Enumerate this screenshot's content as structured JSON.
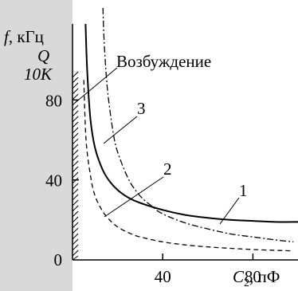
{
  "chart_data": {
    "type": "line",
    "title": "",
    "xlabel": "C",
    "xlabel_sub": "2",
    "xlabel_unit": ", пФ",
    "ylabel_f_sym": "f",
    "ylabel_f_unit": ", кГц",
    "ylabel_q": "Q",
    "ylabel_10k": "10K",
    "x_ticks": [
      {
        "value": 40,
        "label": "40"
      },
      {
        "value": 80,
        "label": "80"
      }
    ],
    "y_ticks": [
      {
        "value": 0,
        "label": "0"
      },
      {
        "value": 40,
        "label": "40"
      },
      {
        "value": 80,
        "label": "80"
      }
    ],
    "xlim": [
      0,
      100
    ],
    "ylim": [
      0,
      130
    ],
    "grid": false,
    "forbidden_zone_xmax": 2.5,
    "series": [
      {
        "name": "1",
        "style": "solid",
        "x": [
          5.8,
          6.5,
          8,
          10,
          13,
          16,
          20,
          25,
          30,
          40,
          50,
          60,
          70,
          80,
          90,
          100
        ],
        "y": [
          118,
          95,
          70,
          56,
          46,
          40,
          35,
          31,
          28.5,
          25,
          22.5,
          21,
          20,
          19.5,
          19,
          19
        ]
      },
      {
        "name": "2",
        "style": "dashed",
        "x": [
          5,
          6,
          8,
          10,
          13,
          16,
          20,
          25,
          30,
          40,
          50,
          60,
          70,
          80,
          90,
          98
        ],
        "y": [
          90,
          60,
          42,
          32,
          25,
          20.5,
          16.5,
          13.5,
          11.5,
          9,
          7.5,
          6.5,
          5.8,
          5.2,
          4.8,
          4.5
        ]
      },
      {
        "name": "3",
        "style": "dashdot",
        "x": [
          13.5,
          14,
          15,
          16,
          18,
          20,
          25,
          30,
          35,
          40,
          50,
          60,
          70,
          80,
          90,
          98
        ],
        "y": [
          126,
          110,
          92,
          80,
          64,
          54,
          40,
          32,
          27,
          23,
          18.5,
          15.5,
          13,
          11.5,
          10,
          9
        ]
      }
    ],
    "annotations": [
      {
        "text": "Возбуждение"
      },
      {
        "text": "1"
      },
      {
        "text": "2"
      },
      {
        "text": "3"
      }
    ]
  }
}
